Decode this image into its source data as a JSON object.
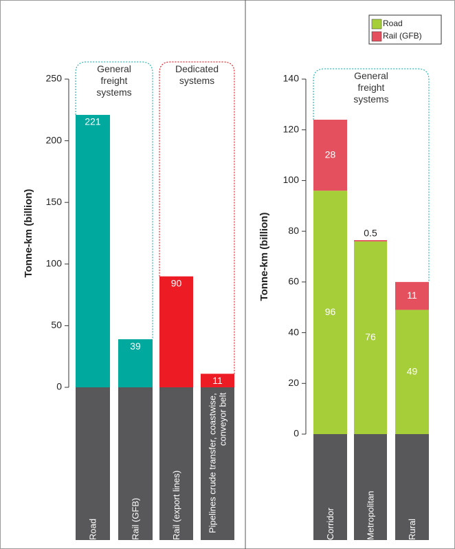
{
  "chart_data": [
    {
      "type": "bar",
      "y_label": "Tonne-km (billion)",
      "categories": [
        "Road",
        "Rail (GFB)",
        "Rail (export lines)",
        "Pipelines crude transfer, coastwise, conveyor belt"
      ],
      "values": [
        221,
        39,
        90,
        11
      ],
      "colors": [
        "#00a99d",
        "#00a99d",
        "#ed1c24",
        "#ed1c24"
      ],
      "ylim": [
        0,
        250
      ],
      "yticks": [
        0,
        50,
        100,
        150,
        200,
        250
      ],
      "annotations": [
        {
          "text": "General freight systems",
          "color": "#2bb5b8"
        },
        {
          "text": "Dedicated systems",
          "color": "#ed1c24"
        }
      ]
    },
    {
      "type": "stacked_bar",
      "y_label": "Tonne-km (billion)",
      "categories": [
        "Corridor",
        "Metropolitan",
        "Rural"
      ],
      "series": [
        {
          "name": "Road",
          "color": "#a6ce39",
          "values": [
            96,
            76,
            49
          ]
        },
        {
          "name": "Rail (GFB)",
          "color": "#e5505e",
          "values": [
            28,
            0.5,
            11
          ]
        }
      ],
      "ylim": [
        0,
        140
      ],
      "yticks": [
        0,
        20,
        40,
        60,
        80,
        100,
        120,
        140
      ],
      "annotations": [
        {
          "text": "General freight systems",
          "color": "#2bb5b8"
        }
      ]
    }
  ]
}
